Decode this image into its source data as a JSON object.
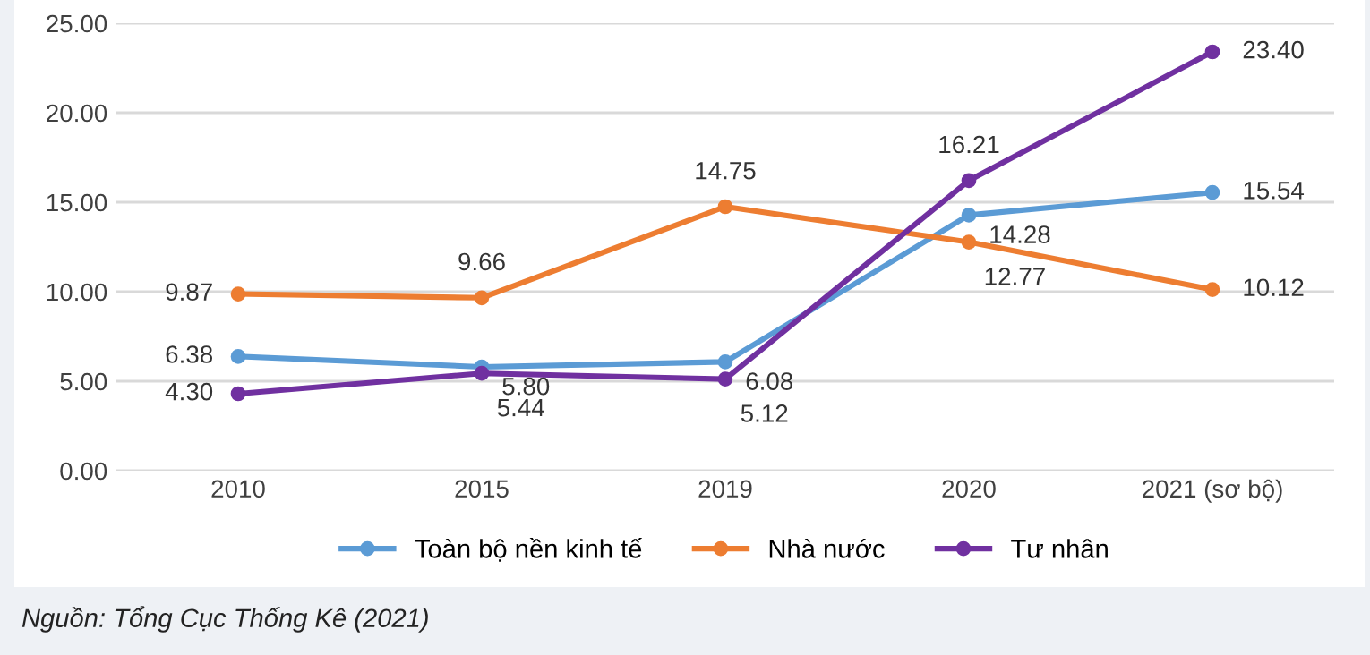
{
  "chart_data": {
    "type": "line",
    "categories": [
      "2010",
      "2015",
      "2019",
      "2020",
      "2021 (sơ bộ)"
    ],
    "series": [
      {
        "name": "Toàn bộ nền kinh tế",
        "color": "#5b9bd5",
        "values": [
          6.38,
          5.8,
          6.08,
          14.28,
          15.54
        ],
        "value_labels": [
          "6.38",
          "5.80",
          "6.08",
          "14.28",
          "15.54"
        ]
      },
      {
        "name": "Nhà nước",
        "color": "#ed7d31",
        "values": [
          9.87,
          9.66,
          14.75,
          12.77,
          10.12
        ],
        "value_labels": [
          "9.87",
          "9.66",
          "14.75",
          "12.77",
          "10.12"
        ]
      },
      {
        "name": "Tư nhân",
        "color": "#7030a0",
        "values": [
          4.3,
          5.44,
          5.12,
          16.21,
          23.4
        ],
        "value_labels": [
          "4.30",
          "5.44",
          "5.12",
          "16.21",
          "23.40"
        ]
      }
    ],
    "ylim": [
      0,
      25
    ],
    "yticks": [
      {
        "value": 0,
        "label": "0.00"
      },
      {
        "value": 5,
        "label": "5.00"
      },
      {
        "value": 10,
        "label": "10.00"
      },
      {
        "value": 15,
        "label": "15.00"
      },
      {
        "value": 20,
        "label": "20.00"
      },
      {
        "value": 25,
        "label": "25.00"
      }
    ],
    "grid": "y",
    "legend": "bottom",
    "marker": "circle",
    "line_style": "solid",
    "annotations": [
      "Nguồn: Tổng Cục Thống Kê (2021)"
    ]
  }
}
